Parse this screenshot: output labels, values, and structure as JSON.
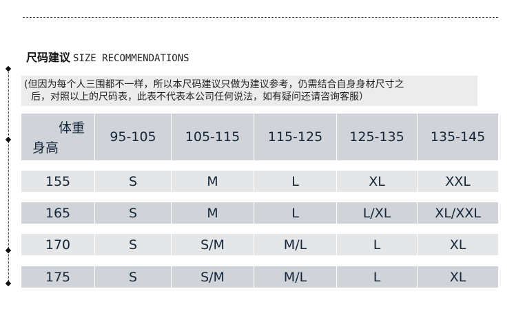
{
  "title": {
    "cn": "尺码建议",
    "en": "SIZE RECOMMENDATIONS"
  },
  "note": {
    "line1": "(但因为每个人三围都不一样，所以本尺码建议只做为建议参考，仍需结合自身身材尺寸之",
    "line2": "后，对照以上的尺码表，此表不代表本公司任何说法，如有疑问还请咨询客服）"
  },
  "table": {
    "corner": {
      "weight": "体重",
      "height": "身高"
    },
    "columns": [
      "95-105",
      "105-115",
      "115-125",
      "125-135",
      "135-145"
    ],
    "rows": [
      {
        "height": "155",
        "sizes": [
          "S",
          "M",
          "L",
          "XL",
          "XXL"
        ]
      },
      {
        "height": "165",
        "sizes": [
          "S",
          "M",
          "L",
          "L/XL",
          "XL/XXL"
        ]
      },
      {
        "height": "170",
        "sizes": [
          "S",
          "S/M",
          "M/L",
          "L",
          "XL"
        ]
      },
      {
        "height": "175",
        "sizes": [
          "S",
          "S/M",
          "M/L",
          "L",
          "XL"
        ]
      }
    ]
  }
}
